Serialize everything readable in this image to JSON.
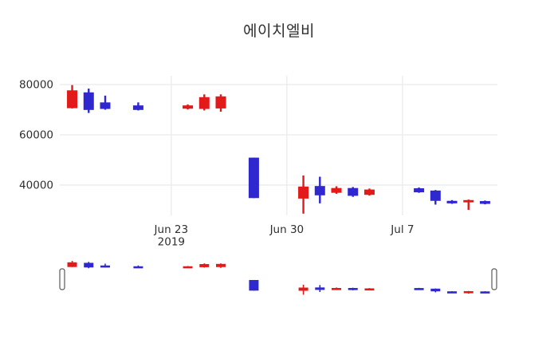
{
  "chart_data": {
    "type": "candlestick",
    "title": "에이치엘비",
    "xlabel": "",
    "ylabel": "",
    "ylim": [
      27900,
      83500
    ],
    "xlim_day_offsets": [
      -0.75,
      25.75
    ],
    "x_epoch_date": "2019-06-17",
    "grid": true,
    "legend": "none",
    "rangeslider": true,
    "increasing_color": "#e21a1a",
    "decreasing_color": "#2f28cf",
    "y_ticks": [
      {
        "value": 80000,
        "label": "80000"
      },
      {
        "value": 60000,
        "label": "60000"
      },
      {
        "value": 40000,
        "label": "40000"
      }
    ],
    "x_ticks": [
      {
        "day_offset": 6,
        "label": "Jun 23",
        "sublabel": "2019"
      },
      {
        "day_offset": 13,
        "label": "Jun 30",
        "sublabel": ""
      },
      {
        "day_offset": 20,
        "label": "Jul 7",
        "sublabel": ""
      }
    ],
    "candles": [
      {
        "date": "2019-06-17",
        "day_offset": 0,
        "open": 70600,
        "high": 79800,
        "low": 70500,
        "close": 77700
      },
      {
        "date": "2019-06-18",
        "day_offset": 1,
        "open": 76900,
        "high": 78400,
        "low": 68700,
        "close": 69900
      },
      {
        "date": "2019-06-19",
        "day_offset": 2,
        "open": 72900,
        "high": 75600,
        "low": 70000,
        "close": 70300
      },
      {
        "date": "2019-06-21",
        "day_offset": 4,
        "open": 71700,
        "high": 72900,
        "low": 69700,
        "close": 69900
      },
      {
        "date": "2019-06-24",
        "day_offset": 7,
        "open": 70400,
        "high": 72100,
        "low": 70100,
        "close": 71700
      },
      {
        "date": "2019-06-25",
        "day_offset": 8,
        "open": 70300,
        "high": 76100,
        "low": 69700,
        "close": 75000
      },
      {
        "date": "2019-06-26",
        "day_offset": 9,
        "open": 70500,
        "high": 76100,
        "low": 69200,
        "close": 75300
      },
      {
        "date": "2019-06-28",
        "day_offset": 11,
        "open": 50900,
        "high": 50900,
        "low": 34800,
        "close": 34800
      },
      {
        "date": "2019-07-01",
        "day_offset": 14,
        "open": 34600,
        "high": 43800,
        "low": 28600,
        "close": 39400
      },
      {
        "date": "2019-07-02",
        "day_offset": 15,
        "open": 39600,
        "high": 43300,
        "low": 32700,
        "close": 35900
      },
      {
        "date": "2019-07-03",
        "day_offset": 16,
        "open": 36900,
        "high": 39500,
        "low": 36500,
        "close": 38800
      },
      {
        "date": "2019-07-04",
        "day_offset": 17,
        "open": 38800,
        "high": 39200,
        "low": 35300,
        "close": 35700
      },
      {
        "date": "2019-07-05",
        "day_offset": 18,
        "open": 36100,
        "high": 38600,
        "low": 35800,
        "close": 38200
      },
      {
        "date": "2019-07-08",
        "day_offset": 21,
        "open": 38700,
        "high": 39000,
        "low": 36900,
        "close": 37100
      },
      {
        "date": "2019-07-09",
        "day_offset": 22,
        "open": 37800,
        "high": 38000,
        "low": 32200,
        "close": 33700
      },
      {
        "date": "2019-07-10",
        "day_offset": 23,
        "open": 33700,
        "high": 34000,
        "low": 32500,
        "close": 32700
      },
      {
        "date": "2019-07-11",
        "day_offset": 24,
        "open": 33100,
        "high": 34200,
        "low": 30100,
        "close": 34000
      },
      {
        "date": "2019-07-12",
        "day_offset": 25,
        "open": 33600,
        "high": 33800,
        "low": 32300,
        "close": 32500
      }
    ]
  },
  "style": {
    "grid_color": "#ebebeb",
    "text_color": "#2f2f2f",
    "background": "#ffffff",
    "handle_border": "#5a5a5a",
    "handle_fill": "#ffffff"
  }
}
